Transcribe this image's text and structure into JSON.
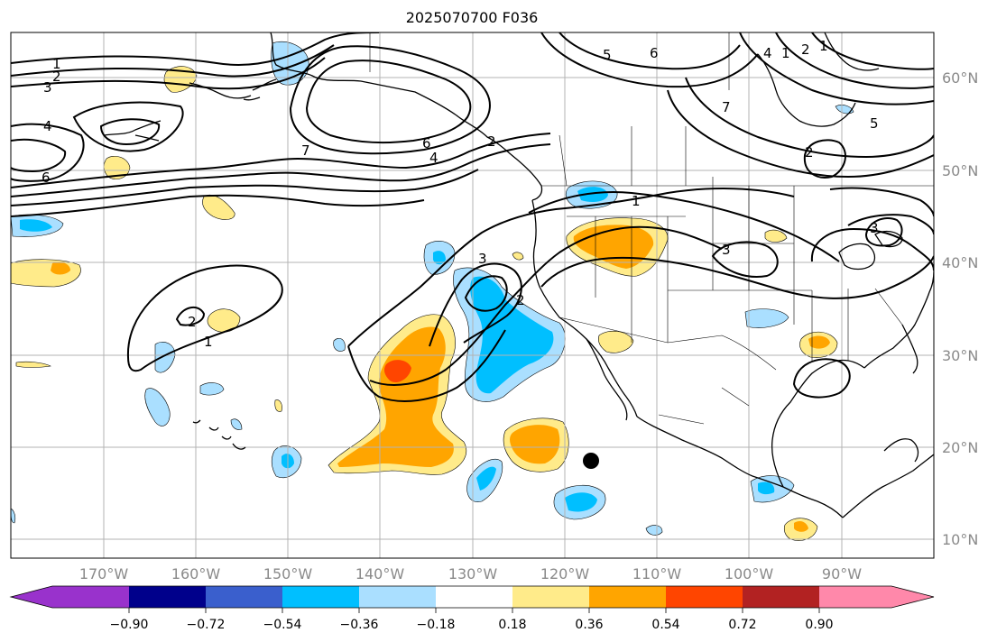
{
  "title": "2025070700 F036",
  "map": {
    "projection": "PlateCarree",
    "lon_range": [
      -180,
      -80
    ],
    "lat_range": [
      8,
      65
    ],
    "lon_labels": [
      "170°W",
      "160°W",
      "150°W",
      "140°W",
      "130°W",
      "120°W",
      "110°W",
      "100°W",
      "90°W"
    ],
    "lat_labels": [
      "10°N",
      "20°N",
      "30°N",
      "40°N",
      "50°N",
      "60°N"
    ],
    "contour_labels": [
      "1",
      "2",
      "3",
      "4",
      "5",
      "6",
      "7",
      "1",
      "2",
      "3",
      "4",
      "6",
      "1",
      "2",
      "3",
      "4",
      "5",
      "6",
      "7",
      "1",
      "2",
      "1",
      "2",
      "3",
      "2",
      "1",
      "2",
      "3",
      "5",
      "6",
      "1",
      "2"
    ],
    "marker": "black-dot"
  },
  "colorbar": {
    "colors": [
      "#9932cc",
      "#00008b",
      "#3a5fcd",
      "#00bfff",
      "#aadfff",
      "#ffffff",
      "#ffeb8a",
      "#ffa500",
      "#ff4500",
      "#b22222",
      "#ff88aa"
    ],
    "tick_labels": [
      "−0.90",
      "−0.72",
      "−0.54",
      "−0.36",
      "−0.18",
      "0.18",
      "0.36",
      "0.54",
      "0.72",
      "0.90"
    ],
    "extend": "both"
  },
  "colors": {
    "grid": "#b3b3b3",
    "contour": "#000000",
    "label_grey": "#8a8a8a"
  }
}
